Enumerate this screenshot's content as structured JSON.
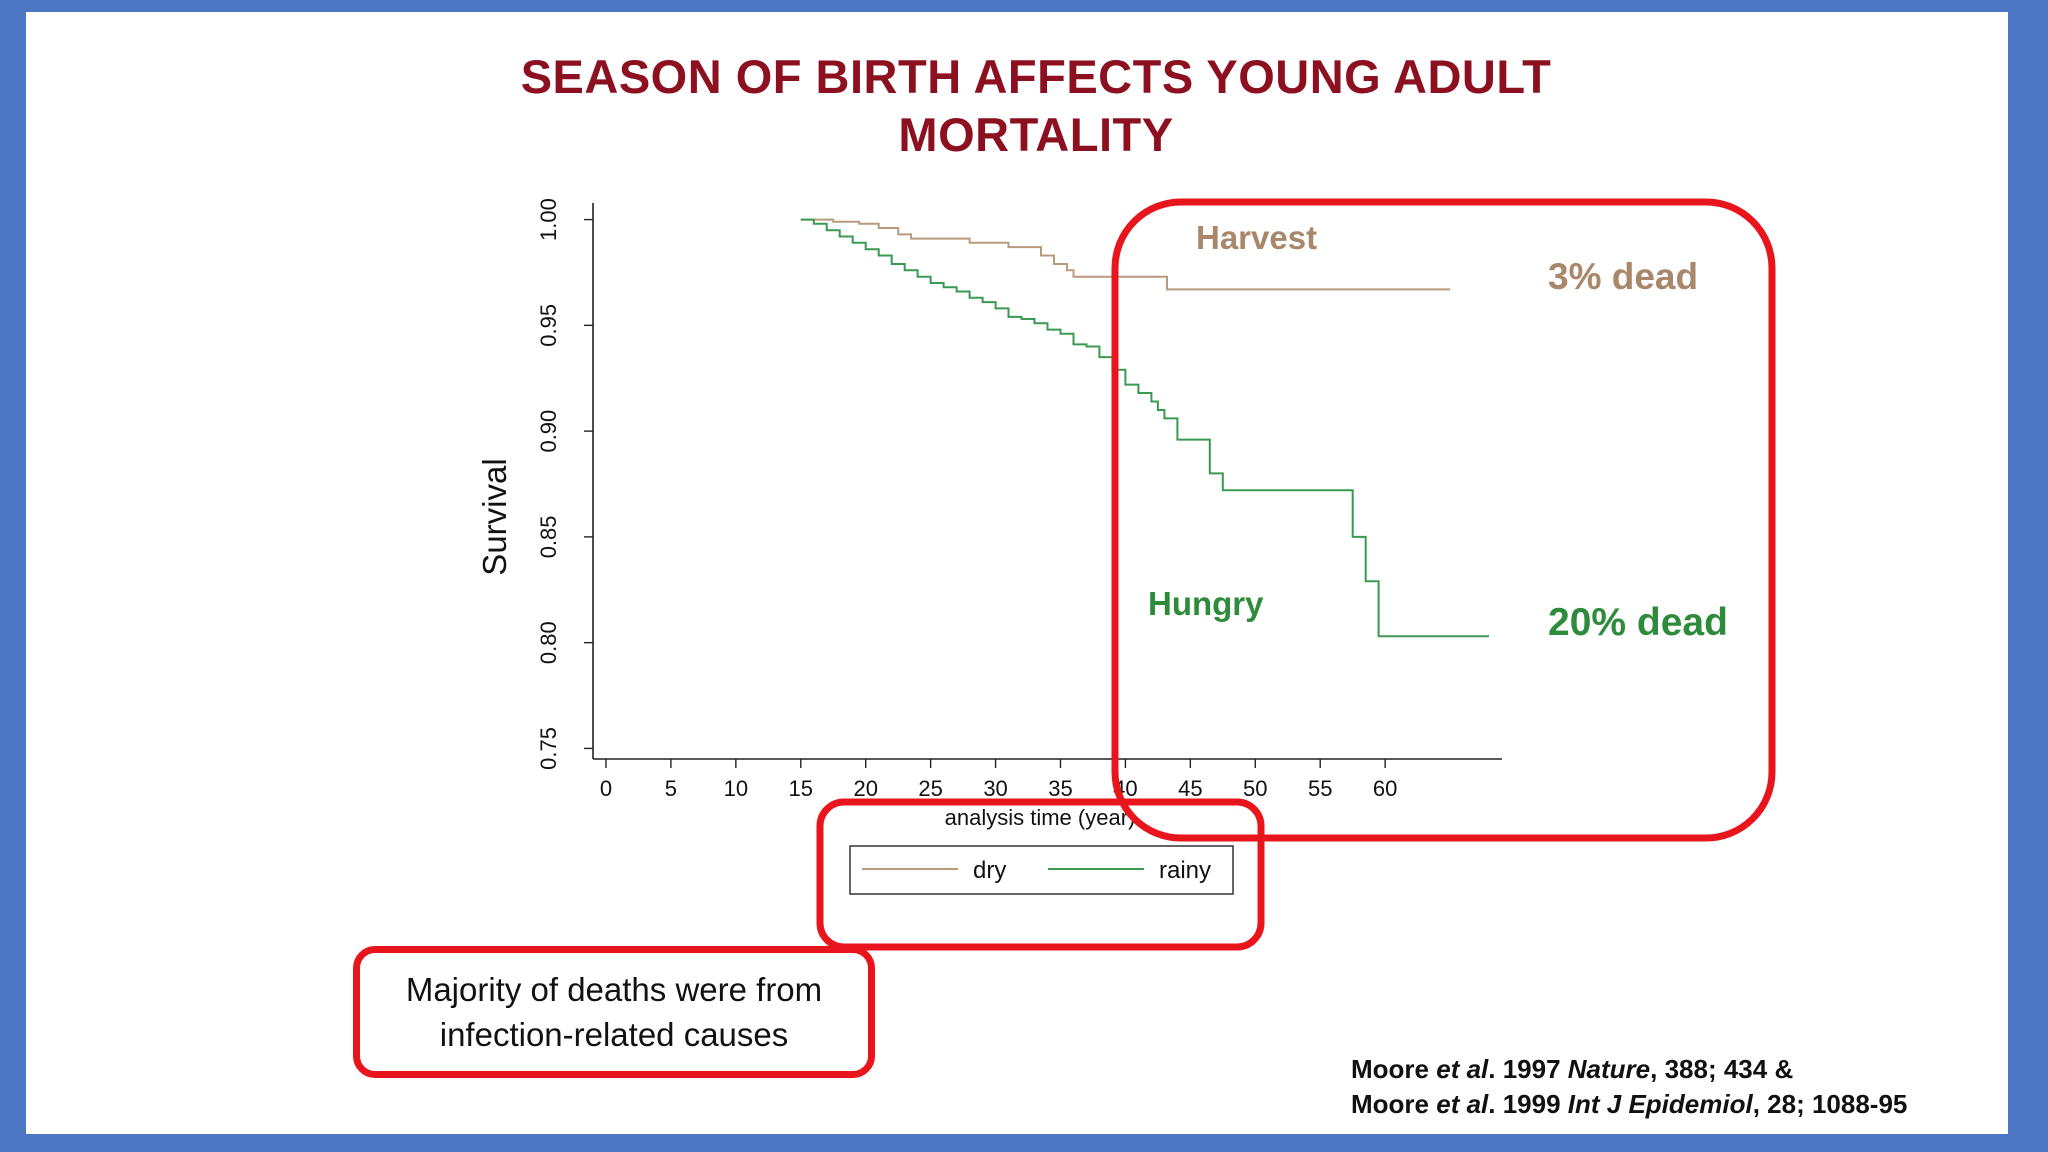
{
  "slide": {
    "title_line1": "SEASON OF BIRTH AFFECTS YOUNG ADULT",
    "title_line2": "MORTALITY",
    "note_line1": "Majority of deaths were from",
    "note_line2": "infection-related causes",
    "citation1": {
      "author": "Moore",
      "etal": "et al",
      "year": ". 1997 ",
      "journal": "Nature",
      "rest": ", 388; 434 &"
    },
    "citation2": {
      "author": "Moore",
      "etal": "et al",
      "year": ". 1999  ",
      "journal": "Int J Epidemiol",
      "rest": ", 28; 1088-95"
    }
  },
  "colors": {
    "title": "#8c1020",
    "dry": "#b89a7c",
    "rainy": "#3a9a52",
    "highlight": "#e8161c",
    "background": "#4a76c4"
  },
  "chart_data": {
    "type": "line",
    "title": "",
    "xlabel": "analysis time (year)",
    "ylabel": "Survival",
    "xlim": [
      -1,
      69
    ],
    "ylim": [
      0.745,
      1.005
    ],
    "x_ticks": [
      0,
      5,
      10,
      15,
      20,
      25,
      30,
      35,
      40,
      45,
      50,
      55,
      60
    ],
    "y_ticks": [
      "0.75",
      "0.80",
      "0.85",
      "0.90",
      "0.95",
      "1.00"
    ],
    "legend": {
      "position": "below",
      "entries": [
        "dry",
        "rainy"
      ]
    },
    "series": [
      {
        "name": "dry",
        "color": "#b89a7c",
        "x": [
          15,
          17.5,
          19.5,
          21,
          22.5,
          23.5,
          28,
          31,
          33.5,
          34.5,
          35.5,
          36,
          43.2,
          65
        ],
        "y": [
          1.0,
          0.999,
          0.998,
          0.996,
          0.993,
          0.991,
          0.989,
          0.987,
          0.983,
          0.979,
          0.976,
          0.973,
          0.967,
          0.967
        ]
      },
      {
        "name": "rainy",
        "color": "#3a9a52",
        "x": [
          15,
          16,
          17,
          18,
          19,
          20,
          21,
          22,
          23,
          24,
          25,
          26,
          27,
          28,
          29,
          30,
          31,
          32,
          33,
          34,
          35,
          36,
          37,
          38,
          39,
          40,
          41,
          42,
          42.5,
          43,
          44,
          46.5,
          47.5,
          57.5,
          58.5,
          59.5,
          68
        ],
        "y": [
          1.0,
          0.998,
          0.995,
          0.992,
          0.989,
          0.986,
          0.983,
          0.979,
          0.976,
          0.973,
          0.97,
          0.968,
          0.966,
          0.963,
          0.961,
          0.958,
          0.954,
          0.953,
          0.951,
          0.948,
          0.946,
          0.941,
          0.94,
          0.935,
          0.929,
          0.922,
          0.918,
          0.914,
          0.91,
          0.906,
          0.896,
          0.88,
          0.872,
          0.85,
          0.829,
          0.803,
          0.803
        ]
      }
    ],
    "annotations": [
      {
        "text": "Harvest",
        "color": "#a8876a"
      },
      {
        "text": "3% dead",
        "color": "#a8876a"
      },
      {
        "text": "Hungry",
        "color": "#2e8b3c"
      },
      {
        "text": "20% dead",
        "color": "#2e8b3c"
      }
    ]
  }
}
